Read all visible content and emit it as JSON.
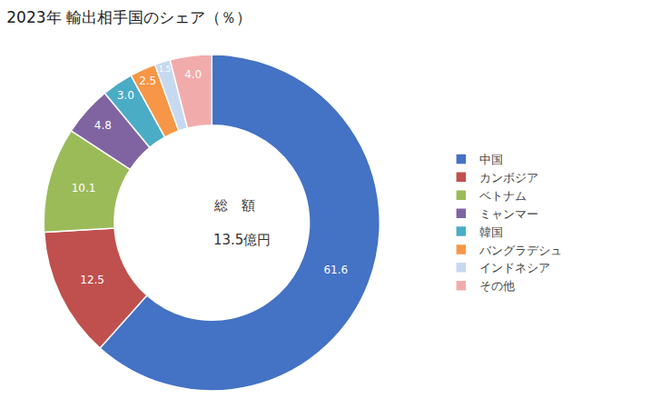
{
  "chart_data": {
    "type": "pie",
    "title": "2023年 輸出相手国のシェア（％）",
    "annotations": [
      "総　額",
      "13.5億円"
    ],
    "categories": [
      "中国",
      "カンボジア",
      "ベトナム",
      "ミャンマー",
      "韓国",
      "バングラデシュ",
      "インドネシア",
      "その他"
    ],
    "values": [
      61.6,
      12.5,
      10.1,
      4.8,
      3.0,
      2.5,
      1.5,
      4.0
    ],
    "value_labels": [
      "61.6",
      "12.5",
      "10.1",
      "4.8",
      "3.0",
      "2.5",
      "1.5",
      "4.0"
    ],
    "colors": [
      "#4472C4",
      "#C0504D",
      "#9BBB59",
      "#8064A2",
      "#4BACC6",
      "#F79646",
      "#C6D9F1",
      "#F2ABAB"
    ],
    "data_labels": true,
    "legend": "right"
  }
}
